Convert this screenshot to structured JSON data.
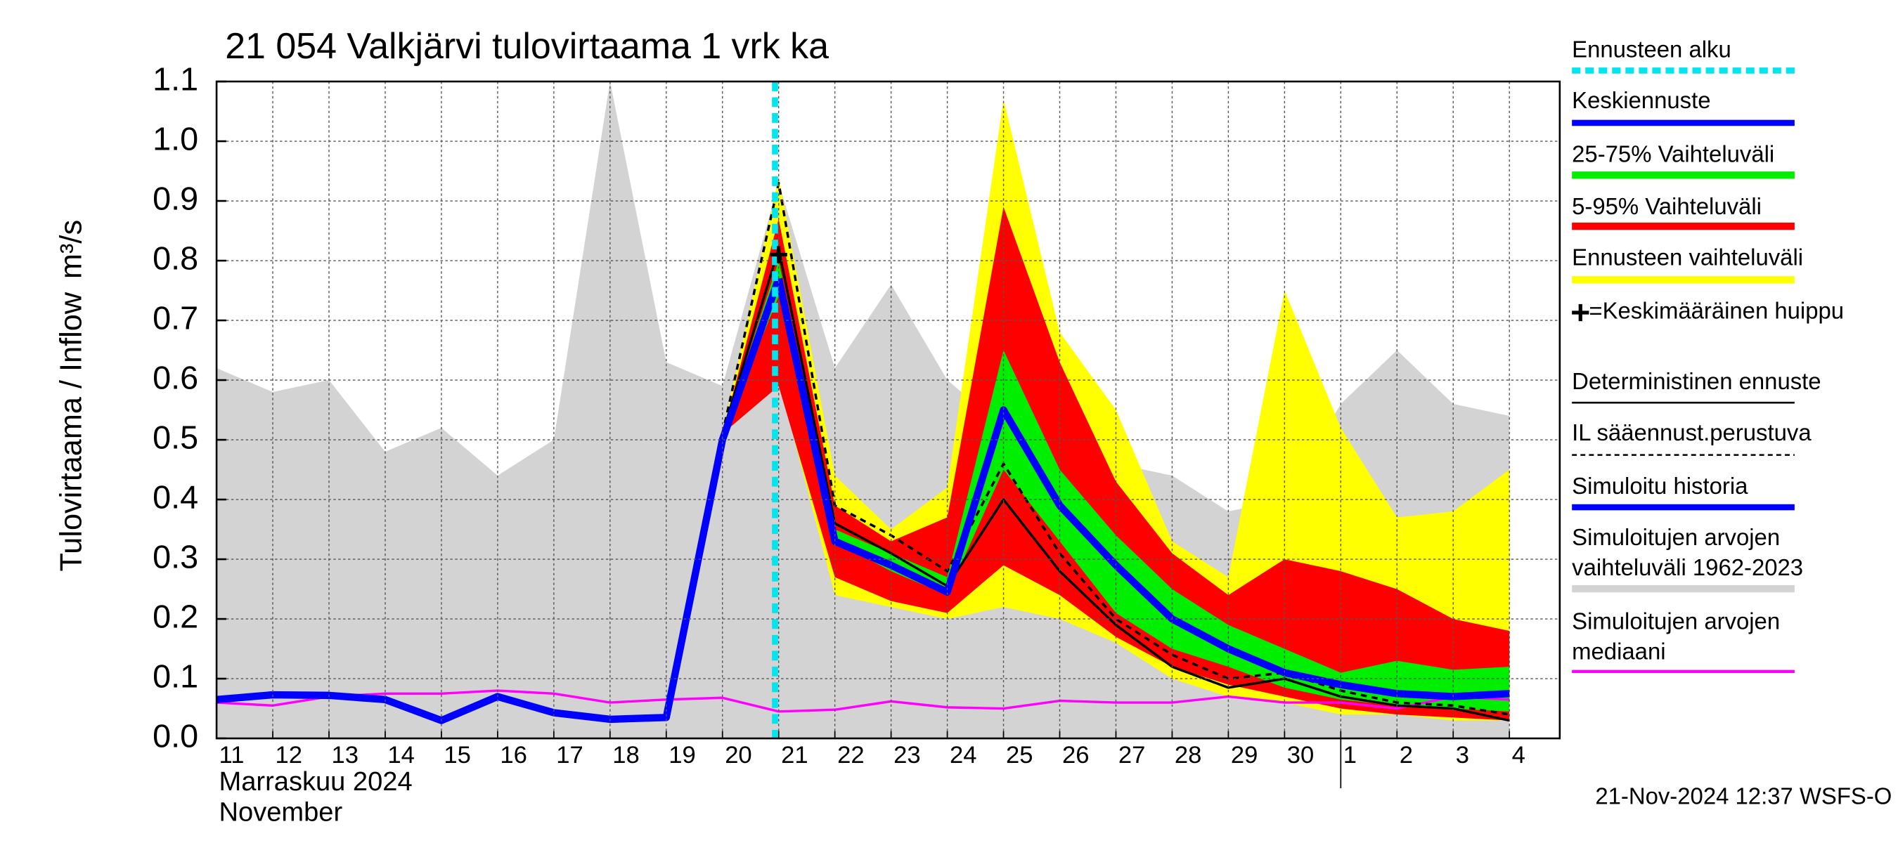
{
  "chart_data": {
    "type": "hydrograph",
    "title": "21 054 Valkjärvi tulovirtaama 1 vrk ka",
    "y_label": "Tulovirtaama / Inflow",
    "y_unit": "m³/s",
    "month_label": "Marraskuu 2024",
    "month_label_en": "November",
    "footer": "21-Nov-2024 12:37 WSFS-O",
    "categories": [
      "11",
      "12",
      "13",
      "14",
      "15",
      "16",
      "17",
      "18",
      "19",
      "20",
      "21",
      "22",
      "23",
      "24",
      "25",
      "26",
      "27",
      "28",
      "29",
      "30",
      "1",
      "2",
      "3",
      "4"
    ],
    "ylim": [
      0,
      1.1
    ],
    "yticks": [
      {
        "value": 0,
        "label": "0.0"
      },
      0.1,
      0.2,
      0.3,
      0.4,
      0.5,
      0.6,
      0.7,
      0.8,
      0.9,
      {
        "value": 1,
        "label": "1.0"
      },
      1.1
    ],
    "grid": true,
    "series": [
      {
        "name": "Ennusteen alku",
        "style": "vline",
        "color": "#00e5ee",
        "at": "21"
      },
      {
        "name": "Keskiennuste",
        "style": "line",
        "color": "#0000ff",
        "values": [
          null,
          null,
          null,
          null,
          null,
          null,
          null,
          null,
          null,
          null,
          0.77,
          0.33,
          0.29,
          0.245,
          0.55,
          0.39,
          0.29,
          0.2,
          0.15,
          0.11,
          0.09,
          0.075,
          0.07,
          0.075
        ]
      },
      {
        "name": "25-75% Vaihteluväli",
        "style": "band",
        "color": "#00ee00",
        "upper": [
          null,
          null,
          null,
          null,
          null,
          null,
          null,
          null,
          null,
          0.51,
          0.8,
          0.35,
          0.31,
          0.27,
          0.65,
          0.45,
          0.34,
          0.25,
          0.19,
          0.15,
          0.11,
          0.13,
          0.115,
          0.12
        ],
        "lower": [
          null,
          null,
          null,
          null,
          null,
          null,
          null,
          null,
          null,
          0.51,
          0.74,
          0.33,
          0.28,
          0.24,
          0.45,
          0.33,
          0.21,
          0.15,
          0.12,
          0.085,
          0.065,
          0.055,
          0.05,
          0.045
        ]
      },
      {
        "name": "5-95% Vaihteluväli",
        "style": "band",
        "color": "#ff0000",
        "upper": [
          null,
          null,
          null,
          null,
          null,
          null,
          null,
          null,
          null,
          0.51,
          0.87,
          0.39,
          0.33,
          0.37,
          0.89,
          0.63,
          0.43,
          0.31,
          0.24,
          0.3,
          0.28,
          0.25,
          0.2,
          0.18
        ],
        "lower": [
          null,
          null,
          null,
          null,
          null,
          null,
          null,
          null,
          null,
          0.51,
          0.59,
          0.27,
          0.23,
          0.21,
          0.29,
          0.24,
          0.17,
          0.12,
          0.09,
          0.07,
          0.05,
          0.04,
          0.035,
          0.03
        ]
      },
      {
        "name": "Ennusteen vaihteluväli",
        "style": "band",
        "color": "#ffff00",
        "upper": [
          null,
          null,
          null,
          null,
          null,
          null,
          null,
          null,
          null,
          0.51,
          0.94,
          0.44,
          0.35,
          0.42,
          1.07,
          0.68,
          0.55,
          0.33,
          0.27,
          0.75,
          0.52,
          0.37,
          0.38,
          0.45
        ],
        "lower": [
          null,
          null,
          null,
          null,
          null,
          null,
          null,
          null,
          null,
          0.51,
          0.6,
          0.24,
          0.22,
          0.2,
          0.22,
          0.2,
          0.16,
          0.1,
          0.07,
          0.06,
          0.04,
          0.04,
          0.03,
          0.03
        ]
      },
      {
        "name": "=Keskimääräinen huippu",
        "style": "marker",
        "color": "#000000",
        "at": "21",
        "value": 0.81
      },
      {
        "name": "Deterministinen ennuste",
        "style": "line",
        "color": "#000000",
        "values": [
          null,
          null,
          null,
          null,
          null,
          null,
          null,
          null,
          null,
          0.51,
          0.82,
          0.36,
          0.31,
          0.255,
          0.4,
          0.28,
          0.19,
          0.12,
          0.085,
          0.1,
          0.07,
          0.055,
          0.05,
          0.03
        ]
      },
      {
        "name": "IL sääennust.perustuva",
        "style": "dashed",
        "color": "#000000",
        "values": [
          null,
          null,
          null,
          null,
          null,
          null,
          null,
          null,
          null,
          0.51,
          0.93,
          0.39,
          0.34,
          0.28,
          0.46,
          0.31,
          0.2,
          0.14,
          0.1,
          0.11,
          0.08,
          0.06,
          0.055,
          0.04
        ]
      },
      {
        "name": "Simuloitu historia",
        "style": "line",
        "color": "#0000ff",
        "values": [
          0.065,
          0.073,
          0.072,
          0.065,
          0.03,
          0.07,
          0.043,
          0.032,
          0.035,
          0.5,
          0.77,
          null,
          null,
          null,
          null,
          null,
          null,
          null,
          null,
          null,
          null,
          null,
          null,
          null
        ]
      },
      {
        "name": [
          "Simuloitujen arvojen",
          "vaihteluväli 1962-2023"
        ],
        "style": "band",
        "color": "#d3d3d3",
        "upper": [
          0.62,
          0.58,
          0.6,
          0.48,
          0.52,
          0.44,
          0.5,
          1.1,
          0.63,
          0.59,
          0.93,
          0.62,
          0.76,
          0.6,
          0.52,
          0.6,
          0.46,
          0.44,
          0.38,
          0.4,
          0.56,
          0.65,
          0.56,
          0.54
        ],
        "lower": [
          0,
          0,
          0,
          0,
          0,
          0,
          0,
          0,
          0,
          0,
          0,
          0,
          0,
          0,
          0,
          0,
          0,
          0,
          0,
          0,
          0,
          0,
          0,
          0
        ]
      },
      {
        "name": [
          "Simuloitujen arvojen",
          "mediaani"
        ],
        "style": "line",
        "color": "#ff00ff",
        "values": [
          0.06,
          0.055,
          0.07,
          0.075,
          0.075,
          0.08,
          0.075,
          0.06,
          0.065,
          0.068,
          0.045,
          0.048,
          0.062,
          0.052,
          0.05,
          0.063,
          0.06,
          0.06,
          0.07,
          0.06,
          0.06,
          0.05,
          0.07,
          0.065
        ]
      }
    ]
  }
}
